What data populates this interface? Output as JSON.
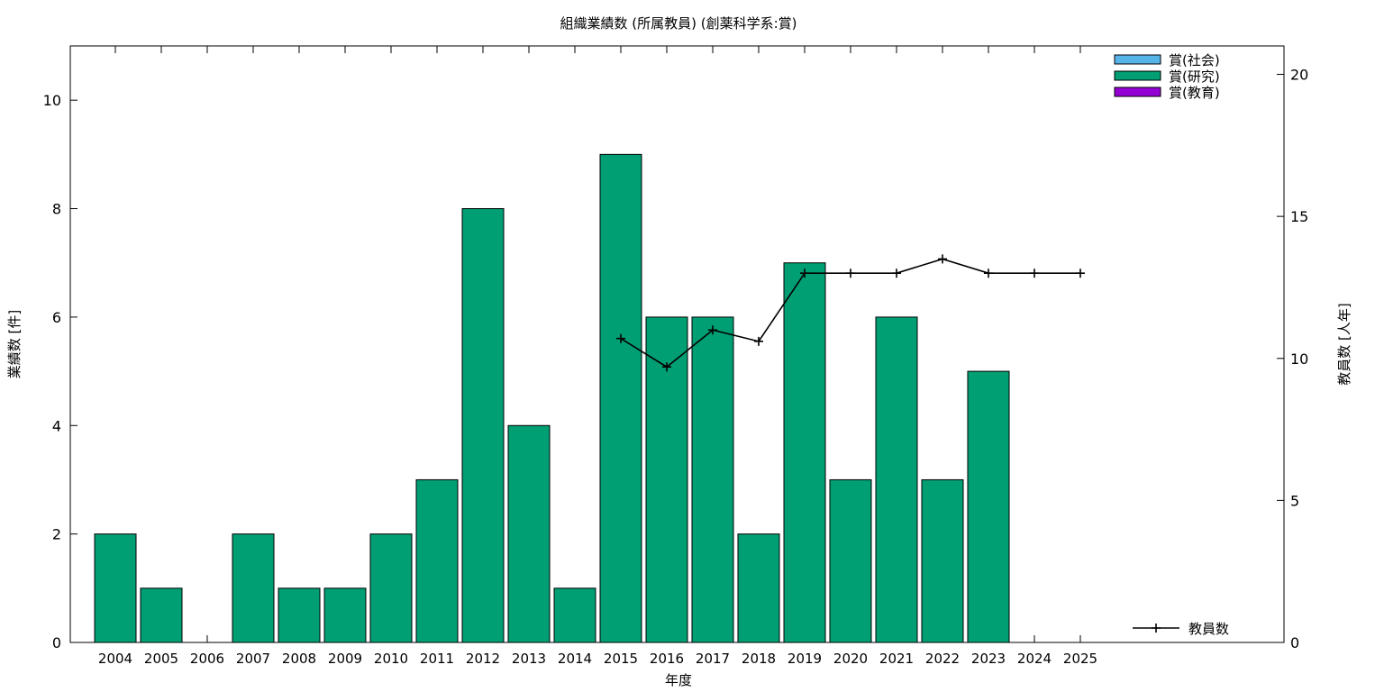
{
  "chart_data": {
    "type": "bar",
    "title": "組織業績数 (所属教員) (創薬科学系:賞)",
    "xlabel": "年度",
    "ylabel": "業績数 [件]",
    "y2label": "教員数 [人年]",
    "categories": [
      "2004",
      "2005",
      "2006",
      "2007",
      "2008",
      "2009",
      "2010",
      "2011",
      "2012",
      "2013",
      "2014",
      "2015",
      "2016",
      "2017",
      "2018",
      "2019",
      "2020",
      "2021",
      "2022",
      "2023",
      "2024",
      "2025"
    ],
    "ylim": [
      0,
      11
    ],
    "yticks": [
      0,
      2,
      4,
      6,
      8,
      10
    ],
    "y2lim": [
      0,
      21
    ],
    "y2ticks": [
      0,
      5,
      10,
      15,
      20
    ],
    "legend_position": "top-right",
    "series": [
      {
        "name": "賞(社会)",
        "color": "#56b4e9",
        "axis": "left",
        "kind": "bar",
        "values": [
          0,
          0,
          0,
          0,
          0,
          0,
          0,
          0,
          0,
          0,
          0,
          0,
          0,
          0,
          0,
          0,
          0,
          0,
          0,
          0,
          0,
          0
        ]
      },
      {
        "name": "賞(研究)",
        "color": "#009e73",
        "axis": "left",
        "kind": "bar",
        "values": [
          2,
          1,
          0,
          2,
          1,
          1,
          2,
          3,
          8,
          4,
          1,
          9,
          6,
          6,
          2,
          7,
          3,
          6,
          3,
          5,
          0,
          0
        ]
      },
      {
        "name": "賞(教育)",
        "color": "#9400d3",
        "axis": "left",
        "kind": "bar",
        "values": [
          0,
          0,
          0,
          0,
          0,
          0,
          0,
          0,
          0,
          0,
          0,
          0,
          0,
          0,
          0,
          0,
          0,
          0,
          0,
          0,
          0,
          0
        ]
      },
      {
        "name": "教員数",
        "color": "#000000",
        "axis": "right",
        "kind": "line",
        "values": [
          null,
          null,
          null,
          null,
          null,
          null,
          null,
          null,
          null,
          null,
          null,
          10.7,
          9.7,
          11.0,
          10.6,
          13.0,
          13.0,
          13.0,
          13.5,
          13.0,
          13.0,
          13.0
        ]
      }
    ]
  }
}
